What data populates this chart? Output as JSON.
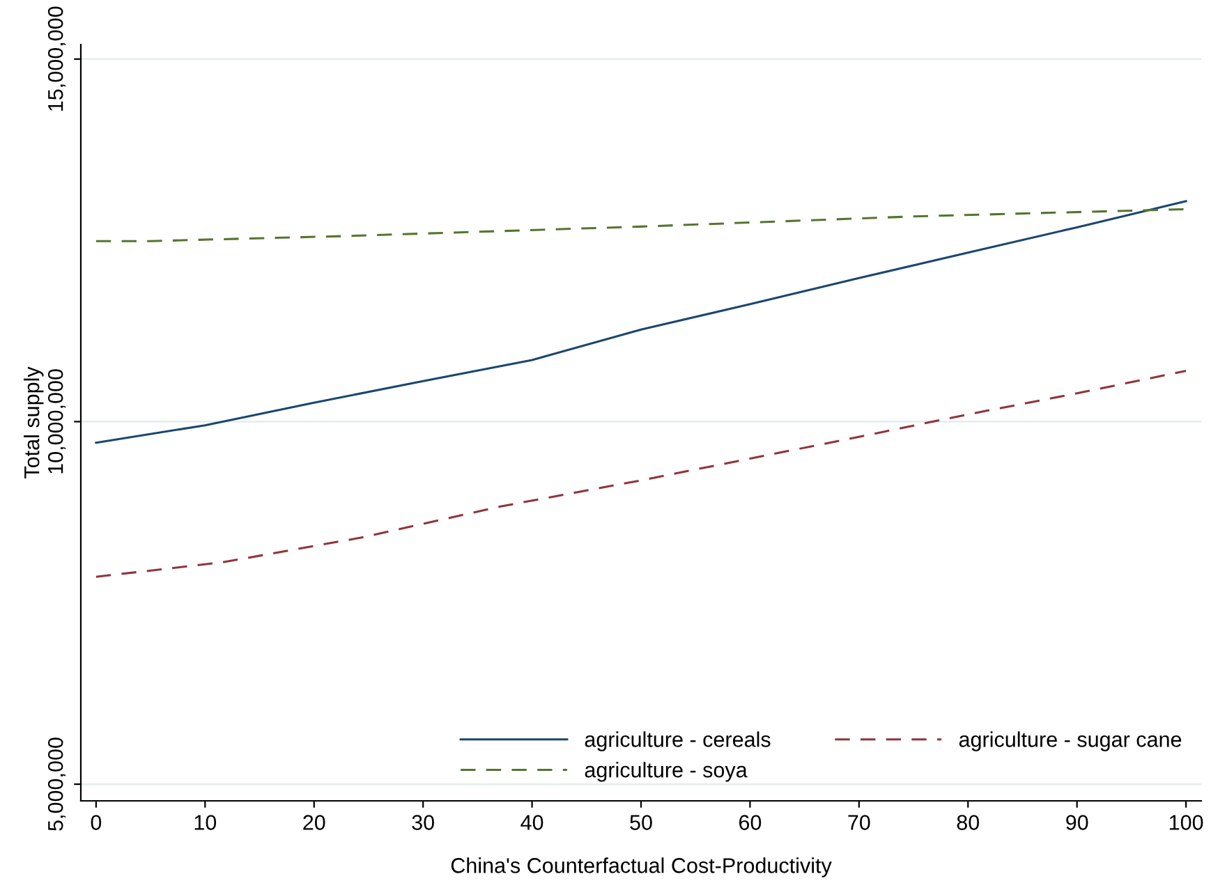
{
  "chart_data": {
    "type": "line",
    "xlabel": "China's Counterfactual Cost-Productivity",
    "ylabel": "Total supply",
    "xlim": [
      -1.4,
      101.4
    ],
    "xticks": [
      0,
      10,
      20,
      30,
      40,
      50,
      60,
      70,
      80,
      90,
      100
    ],
    "ylim": [
      4770000,
      15200000
    ],
    "yticks": [
      {
        "value": 5000000,
        "label": "5,000,000"
      },
      {
        "value": 10000000,
        "label": "10,000,000"
      },
      {
        "value": 15000000,
        "label": "15,000,000"
      }
    ],
    "grid": "y",
    "legend": "bottom right",
    "marker": "none",
    "series": [
      {
        "name": "agriculture - cereals",
        "color": "#1a476f",
        "line_style": "solid",
        "x": [
          0,
          10,
          20,
          30,
          40,
          50,
          60,
          70,
          80,
          90,
          100
        ],
        "values": [
          9710000,
          9950000,
          10260000,
          10560000,
          10850000,
          11270000,
          11620000,
          11980000,
          12330000,
          12680000,
          13040000
        ]
      },
      {
        "name": "agriculture - soya",
        "color": "#55752f",
        "line_style": "dashed",
        "x": [
          0,
          5,
          23,
          50,
          75,
          100
        ],
        "values": [
          12490000,
          12490000,
          12560000,
          12690000,
          12830000,
          12930000
        ]
      },
      {
        "name": "agriculture - sugar cane",
        "color": "#90353b",
        "line_style": "dashed",
        "x": [
          0,
          11.6,
          24.3,
          37.1,
          50,
          60,
          70,
          80,
          90,
          100
        ],
        "values": [
          7860000,
          8060000,
          8400000,
          8830000,
          9190000,
          9490000,
          9790000,
          10100000,
          10390000,
          10700000
        ]
      }
    ]
  }
}
